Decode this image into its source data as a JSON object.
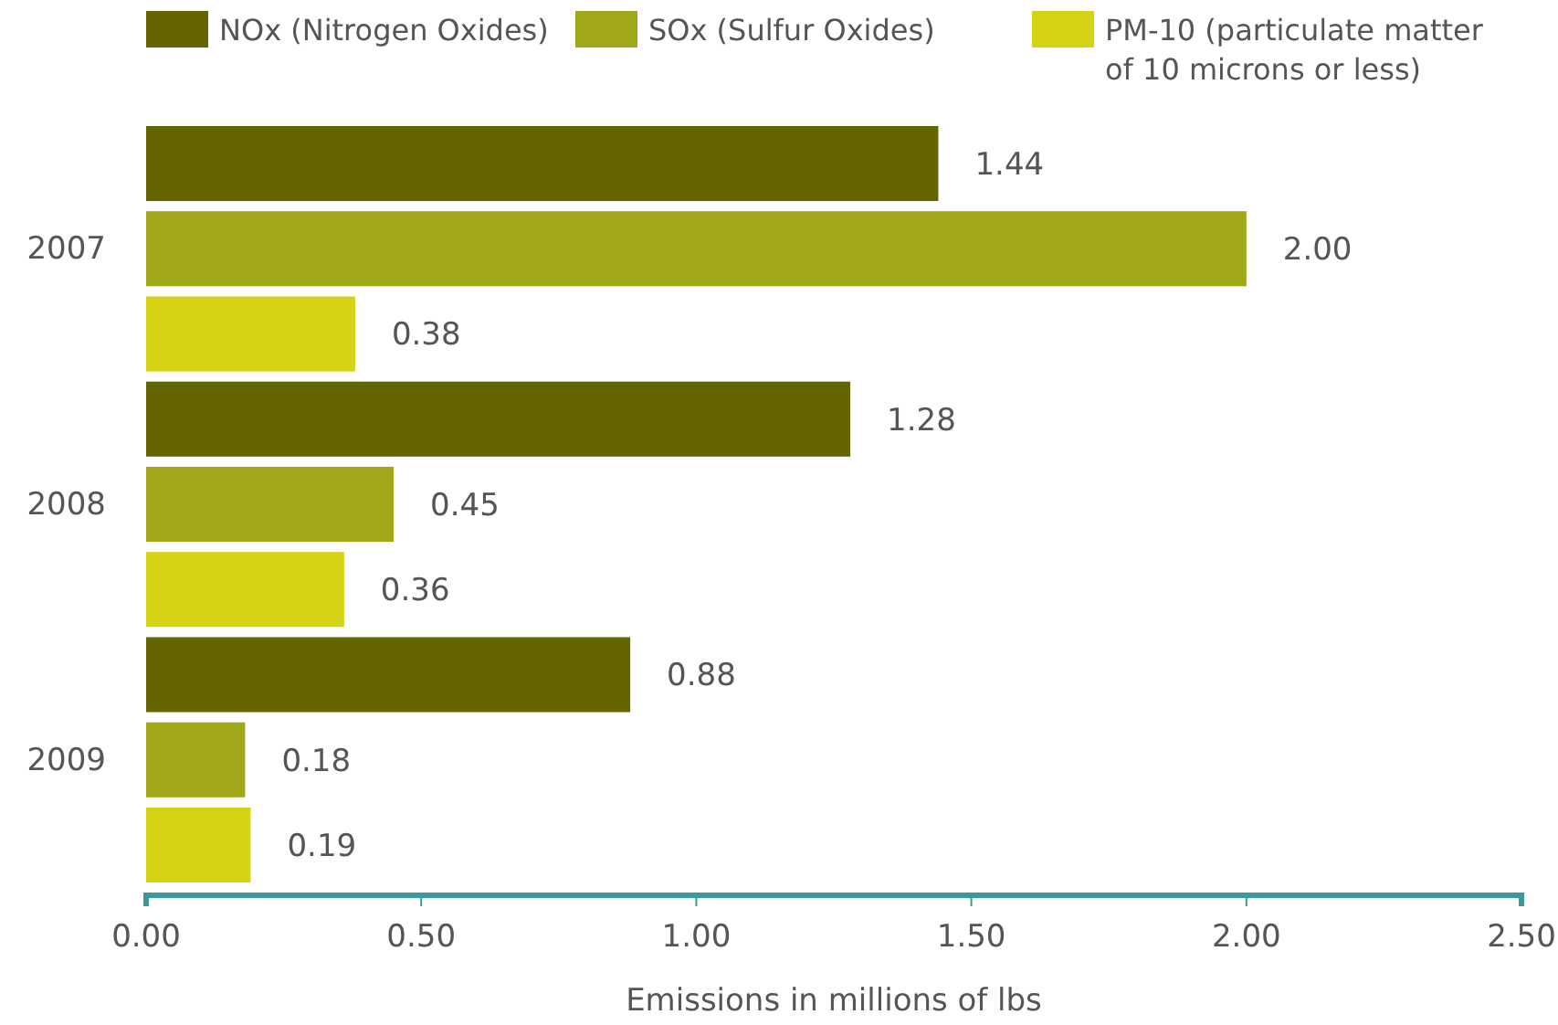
{
  "chart_data": {
    "type": "bar",
    "orientation": "horizontal",
    "categories": [
      "2007",
      "2008",
      "2009"
    ],
    "series": [
      {
        "name": "NOx (Nitrogen Oxides)",
        "color": "#646400",
        "values": [
          1.44,
          1.28,
          0.88
        ],
        "value_labels": [
          "1.44",
          "1.28",
          "0.88"
        ]
      },
      {
        "name": "SOx (Sulfur Oxides)",
        "color": "#a0a81a",
        "values": [
          2.0,
          0.45,
          0.18
        ],
        "value_labels": [
          "2.00",
          "0.45",
          "0.18"
        ]
      },
      {
        "name": "PM-10 (particulate matter of 10 microns or less)",
        "color": "#d6d215",
        "values": [
          0.38,
          0.36,
          0.19
        ],
        "value_labels": [
          "0.38",
          "0.36",
          "0.19"
        ]
      }
    ],
    "xlim": [
      0,
      2.5
    ],
    "xticks": [
      {
        "value": 0,
        "label": "0.00"
      },
      {
        "value": 0.5,
        "label": "0.50"
      },
      {
        "value": 1,
        "label": "1.00"
      },
      {
        "value": 1.5,
        "label": "1.50"
      },
      {
        "value": 2,
        "label": "2.00"
      },
      {
        "value": 2.5,
        "label": "2.50"
      }
    ],
    "xlabel": "Emissions in millions of lbs",
    "grid": false,
    "legend": "top"
  }
}
